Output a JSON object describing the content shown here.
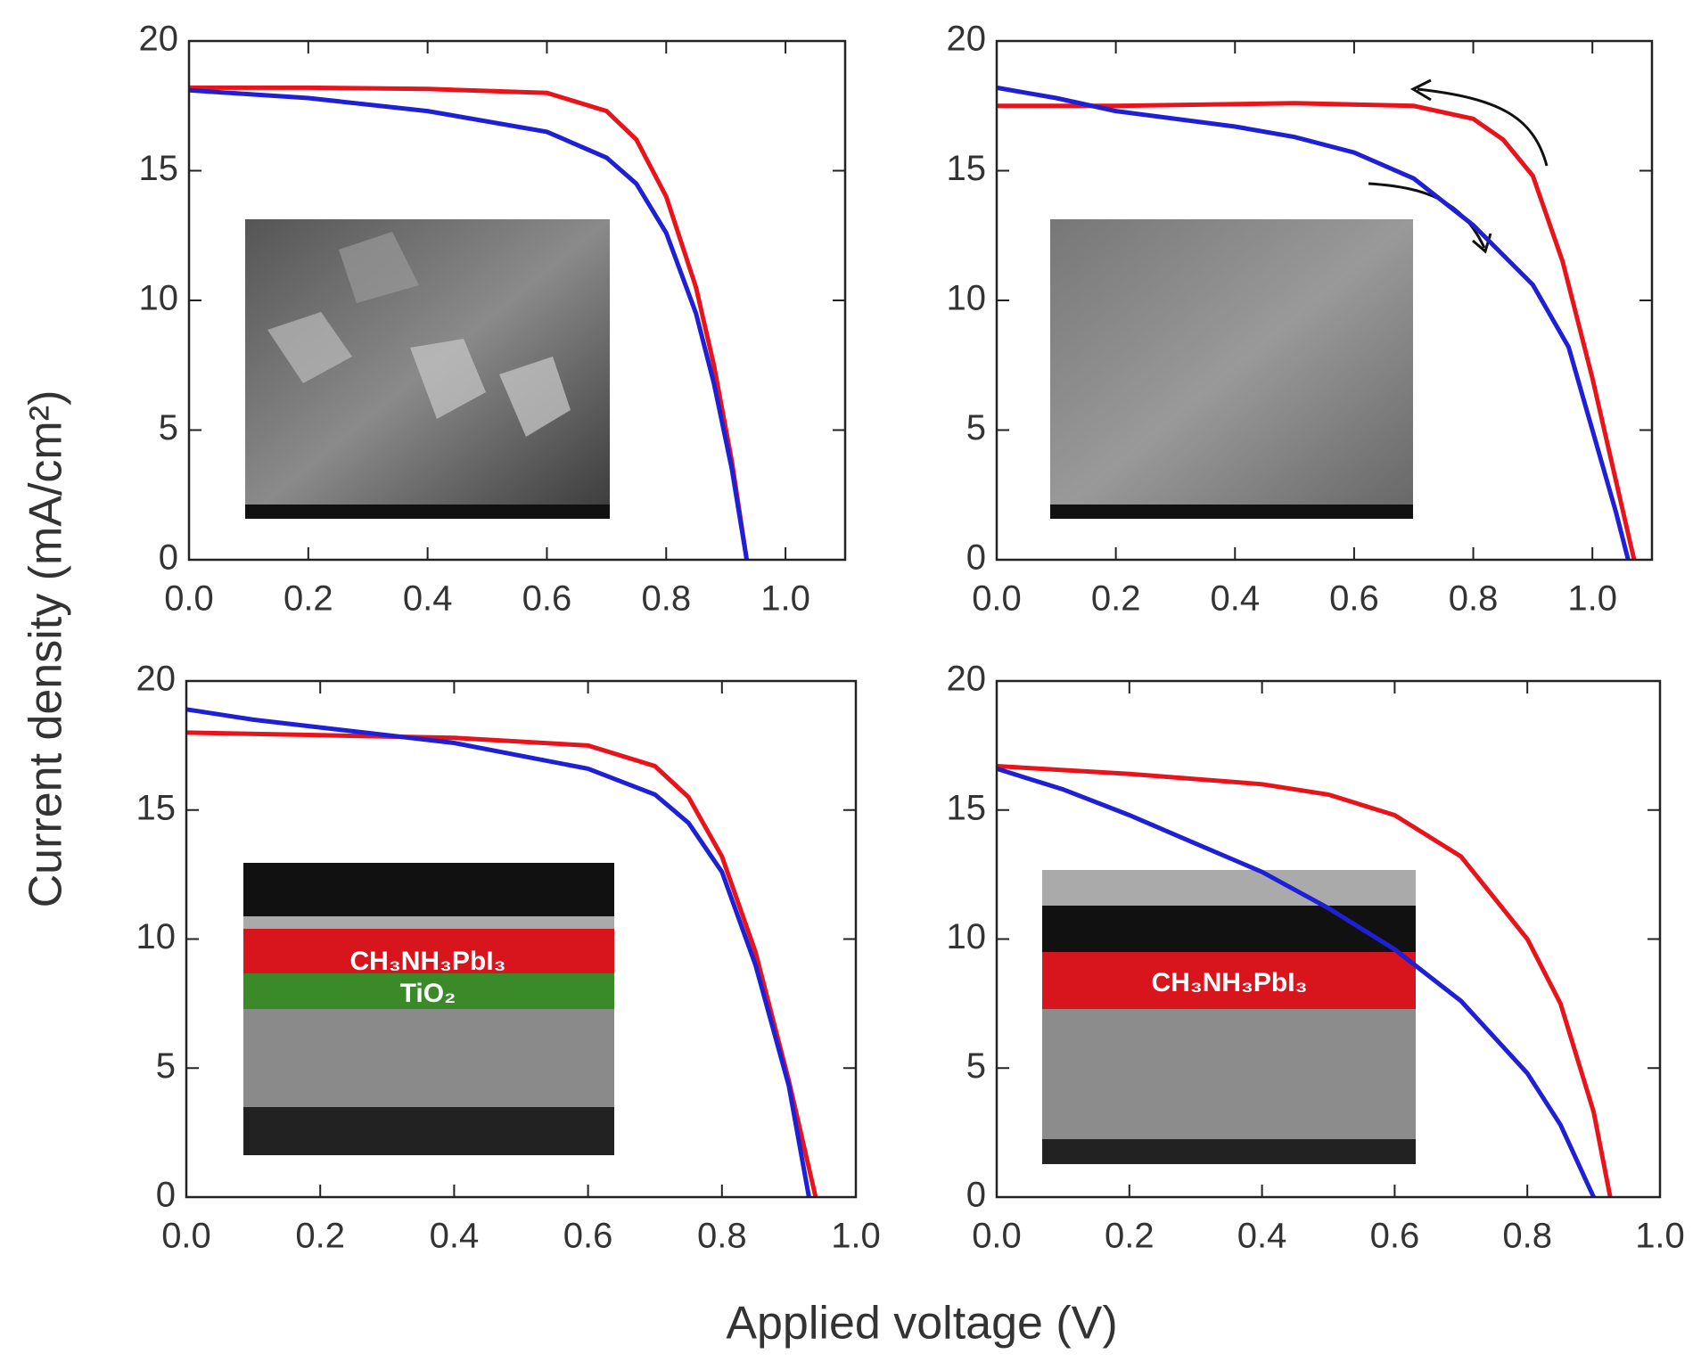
{
  "y_label": "Current density (mA/cm²)",
  "x_label": "Applied voltage (V)",
  "chart_data": [
    {
      "type": "line",
      "xlim": [
        0,
        1.1
      ],
      "ylim": [
        0,
        20
      ],
      "yticks": [
        0,
        5,
        10,
        15,
        20
      ],
      "xticks": [
        {
          "value": 0,
          "label": "0.0"
        },
        0.2,
        0.4,
        0.6,
        0.8,
        {
          "value": 1,
          "label": "1.0"
        }
      ],
      "series": [
        {
          "color": "#e8141c",
          "x": [
            0,
            0.2,
            0.4,
            0.6,
            0.7,
            0.75,
            0.8,
            0.85,
            0.88,
            0.91,
            0.935
          ],
          "values": [
            18.2,
            18.2,
            18.15,
            18.0,
            17.3,
            16.2,
            14,
            10.5,
            7.5,
            3.8,
            0
          ]
        },
        {
          "color": "#1f1fd6",
          "x": [
            0,
            0.2,
            0.4,
            0.6,
            0.7,
            0.75,
            0.8,
            0.85,
            0.88,
            0.91,
            0.935
          ],
          "values": [
            18.1,
            17.8,
            17.3,
            16.5,
            15.5,
            14.5,
            12.6,
            9.5,
            6.8,
            3.5,
            0
          ]
        }
      ]
    },
    {
      "type": "line",
      "xlim": [
        0,
        1.1
      ],
      "ylim": [
        0,
        20
      ],
      "yticks": [
        0,
        5,
        10,
        15,
        20
      ],
      "xticks": [
        {
          "value": 0,
          "label": "0.0"
        },
        0.2,
        0.4,
        0.6,
        0.8,
        {
          "value": 1,
          "label": "1.0"
        }
      ],
      "series": [
        {
          "color": "#e8141c",
          "x": [
            0,
            0.2,
            0.5,
            0.7,
            0.8,
            0.85,
            0.9,
            0.95,
            1.0,
            1.04,
            1.07
          ],
          "values": [
            17.5,
            17.5,
            17.6,
            17.5,
            17,
            16.2,
            14.8,
            11.5,
            7,
            3,
            0
          ]
        },
        {
          "color": "#1f1fd6",
          "x": [
            0,
            0.1,
            0.2,
            0.4,
            0.5,
            0.6,
            0.7,
            0.8,
            0.9,
            0.96,
            1.0,
            1.04,
            1.06
          ],
          "values": [
            18.2,
            17.8,
            17.3,
            16.7,
            16.3,
            15.7,
            14.7,
            12.9,
            10.6,
            8.2,
            5,
            1.8,
            0
          ]
        }
      ]
    },
    {
      "type": "line",
      "xlim": [
        0,
        1.0
      ],
      "ylim": [
        0,
        20
      ],
      "yticks": [
        0,
        5,
        10,
        15,
        20
      ],
      "xticks": [
        {
          "value": 0,
          "label": "0.0"
        },
        0.2,
        0.4,
        0.6,
        0.8,
        {
          "value": 1,
          "label": "1.0"
        }
      ],
      "annotations": [
        "CH₃NH₃PbI₃",
        "TiO₂"
      ],
      "series": [
        {
          "color": "#e8141c",
          "x": [
            0,
            0.2,
            0.4,
            0.6,
            0.7,
            0.75,
            0.8,
            0.85,
            0.9,
            0.94
          ],
          "values": [
            18,
            17.9,
            17.8,
            17.5,
            16.7,
            15.5,
            13.2,
            9.5,
            4.5,
            0
          ]
        },
        {
          "color": "#1f1fd6",
          "x": [
            0,
            0.1,
            0.2,
            0.4,
            0.6,
            0.7,
            0.75,
            0.8,
            0.85,
            0.9,
            0.93
          ],
          "values": [
            18.9,
            18.5,
            18.2,
            17.6,
            16.6,
            15.6,
            14.5,
            12.6,
            9,
            4.3,
            0
          ]
        }
      ]
    },
    {
      "type": "line",
      "xlim": [
        0,
        1.0
      ],
      "ylim": [
        0,
        20
      ],
      "yticks": [
        0,
        5,
        10,
        15,
        20
      ],
      "xticks": [
        {
          "value": 0,
          "label": "0.0"
        },
        0.2,
        0.4,
        0.6,
        0.8,
        {
          "value": 1,
          "label": "1.0"
        }
      ],
      "annotations": [
        "CH₃NH₃PbI₃"
      ],
      "series": [
        {
          "color": "#e8141c",
          "x": [
            0,
            0.2,
            0.4,
            0.5,
            0.6,
            0.7,
            0.8,
            0.85,
            0.9,
            0.925
          ],
          "values": [
            16.7,
            16.4,
            16,
            15.6,
            14.8,
            13.2,
            10,
            7.5,
            3.3,
            0
          ]
        },
        {
          "color": "#1f1fd6",
          "x": [
            0,
            0.1,
            0.2,
            0.3,
            0.4,
            0.5,
            0.6,
            0.7,
            0.8,
            0.85,
            0.9
          ],
          "values": [
            16.6,
            15.8,
            14.8,
            13.7,
            12.6,
            11.2,
            9.6,
            7.6,
            4.8,
            2.8,
            0
          ]
        }
      ]
    }
  ]
}
